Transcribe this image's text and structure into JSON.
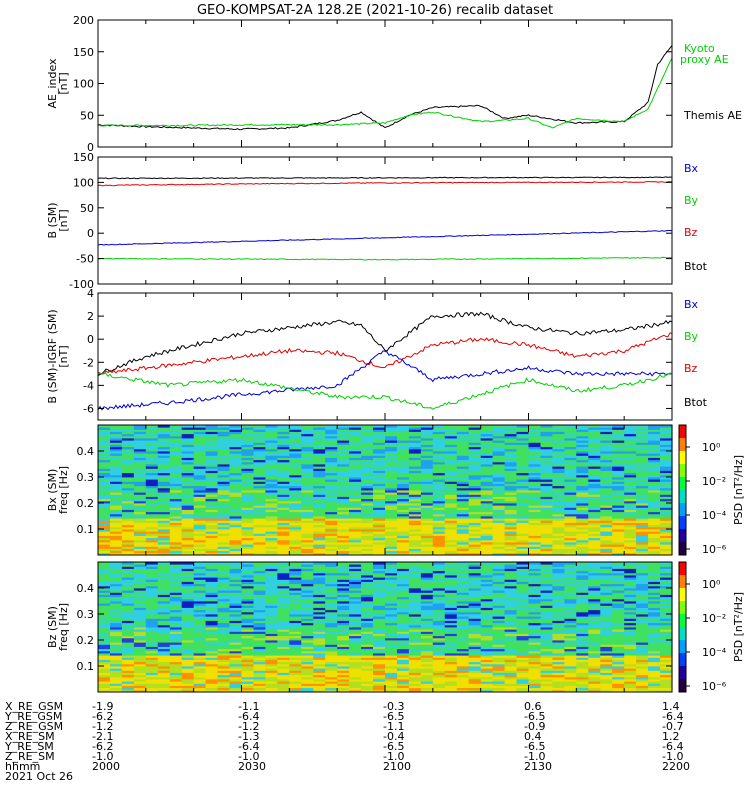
{
  "title": "GEO-KOMPSAT-2A 128.2E (2021-10-26) recalib dataset",
  "colors": {
    "black": "#000000",
    "green": "#00d000",
    "blue": "#0000d0",
    "red": "#e00000"
  },
  "chart_data": [
    {
      "type": "line",
      "ylabel_lines": [
        "AE_index",
        "[nT]"
      ],
      "ylim": [
        0,
        200
      ],
      "yticks": [
        0,
        50,
        100,
        150,
        200
      ],
      "legend": [
        "Kyoto proxy AE",
        "Themis AE"
      ],
      "series": [
        {
          "name": "Themis AE",
          "color": "black",
          "x": [
            2000,
            2010,
            2020,
            2030,
            2040,
            2050,
            2055,
            2100,
            2105,
            2110,
            2120,
            2125,
            2130,
            2140,
            2150,
            2155,
            2157,
            2200
          ],
          "values": [
            35,
            32,
            30,
            28,
            30,
            42,
            55,
            30,
            50,
            62,
            65,
            45,
            50,
            38,
            40,
            70,
            130,
            160
          ]
        },
        {
          "name": "Kyoto proxy AE",
          "color": "green",
          "x": [
            2000,
            2010,
            2020,
            2030,
            2040,
            2050,
            2100,
            2105,
            2110,
            2120,
            2125,
            2130,
            2135,
            2140,
            2150,
            2155,
            2200
          ],
          "values": [
            34,
            34,
            34,
            35,
            35,
            35,
            38,
            50,
            55,
            40,
            42,
            45,
            30,
            45,
            40,
            60,
            140
          ]
        }
      ]
    },
    {
      "type": "line",
      "ylabel_lines": [
        "B (SM)",
        "[nT]"
      ],
      "ylim": [
        -100,
        150
      ],
      "yticks": [
        -100,
        -50,
        0,
        50,
        100,
        150
      ],
      "legend": [
        "Bx",
        "By",
        "Bz",
        "Btot"
      ],
      "series": [
        {
          "name": "Btot",
          "color": "black",
          "x": [
            2000,
            2200
          ],
          "values": [
            108,
            110
          ]
        },
        {
          "name": "Bz",
          "color": "red",
          "x": [
            2000,
            2030,
            2100,
            2200
          ],
          "values": [
            94,
            97,
            99,
            101
          ]
        },
        {
          "name": "Bx",
          "color": "blue",
          "x": [
            2000,
            2200
          ],
          "values": [
            -23,
            5
          ]
        },
        {
          "name": "By",
          "color": "green",
          "x": [
            2000,
            2100,
            2200
          ],
          "values": [
            -50,
            -52,
            -48
          ]
        }
      ]
    },
    {
      "type": "line",
      "ylabel_lines": [
        "B (SM)-IGRF (SM)",
        "[nT]"
      ],
      "ylim": [
        -7,
        4
      ],
      "yticks": [
        -6,
        -4,
        -2,
        0,
        2,
        4
      ],
      "legend": [
        "Bx",
        "By",
        "Bz",
        "Btot"
      ],
      "series": [
        {
          "name": "Btot",
          "color": "black",
          "x": [
            2000,
            2010,
            2030,
            2050,
            2055,
            2100,
            2110,
            2120,
            2130,
            2140,
            2150,
            2200
          ],
          "values": [
            -3,
            -1.5,
            0.5,
            1.5,
            1.2,
            -1,
            2,
            2.2,
            1,
            0.5,
            0.8,
            1.5
          ]
        },
        {
          "name": "Bz",
          "color": "red",
          "x": [
            2000,
            2020,
            2040,
            2050,
            2100,
            2110,
            2120,
            2130,
            2140,
            2150,
            2200
          ],
          "values": [
            -3,
            -2,
            -1,
            -1.2,
            -2.5,
            -0.5,
            0,
            -0.5,
            -1.5,
            -1,
            0.5
          ]
        },
        {
          "name": "Bx",
          "color": "blue",
          "x": [
            2000,
            2015,
            2030,
            2050,
            2100,
            2110,
            2120,
            2130,
            2140,
            2150,
            2200
          ],
          "values": [
            -6,
            -5.5,
            -4.8,
            -4,
            -1,
            -3.5,
            -3,
            -2.5,
            -3,
            -3,
            -3
          ]
        },
        {
          "name": "By",
          "color": "green",
          "x": [
            2000,
            2015,
            2030,
            2050,
            2100,
            2110,
            2130,
            2140,
            2150,
            2200
          ],
          "values": [
            -3,
            -4,
            -3.5,
            -5,
            -5,
            -6,
            -3.5,
            -4.5,
            -4,
            -3
          ]
        }
      ]
    },
    {
      "type": "heatmap",
      "ylabel_lines": [
        "Bx (SM)",
        "freq [Hz]"
      ],
      "ylim": [
        0,
        0.5
      ],
      "yticks": [
        0.1,
        0.2,
        0.3,
        0.4
      ],
      "colorbar_label": "PSD [nT²/Hz]",
      "colorbar_ticks": [
        "10⁰",
        "10⁻²",
        "10⁻⁴",
        "10⁻⁶"
      ]
    },
    {
      "type": "heatmap",
      "ylabel_lines": [
        "Bz (SM)",
        "freq [Hz]"
      ],
      "ylim": [
        0,
        0.5
      ],
      "yticks": [
        0.1,
        0.2,
        0.3,
        0.4
      ],
      "colorbar_label": "PSD [nT²/Hz]",
      "colorbar_ticks": [
        "10⁰",
        "10⁻²",
        "10⁻⁴",
        "10⁻⁶"
      ]
    }
  ],
  "xaxis": {
    "row_labels": [
      "X_RE_GSM",
      "Y_RE_GSM",
      "Z_RE_GSM",
      "X_RE_SM",
      "Y_RE_SM",
      "Z_RE_SM",
      "hhmm",
      "2021 Oct 26"
    ],
    "columns": [
      {
        "values": [
          "-1.9",
          "-6.2",
          "-1.2",
          "-2.1",
          "-6.2",
          "-1.0",
          "2000"
        ]
      },
      {
        "values": [
          "-1.1",
          "-6.4",
          "-1.2",
          "-1.3",
          "-6.4",
          "-1.0",
          "2030"
        ]
      },
      {
        "values": [
          "-0.3",
          "-6.5",
          "-1.1",
          "-0.4",
          "-6.5",
          "-1.0",
          "2100"
        ]
      },
      {
        "values": [
          "0.6",
          "-6.5",
          "-0.9",
          "0.4",
          "-6.5",
          "-1.0",
          "2130"
        ]
      },
      {
        "values": [
          "1.4",
          "-6.4",
          "-0.7",
          "1.2",
          "-6.4",
          "-1.0",
          "2200"
        ]
      }
    ]
  }
}
